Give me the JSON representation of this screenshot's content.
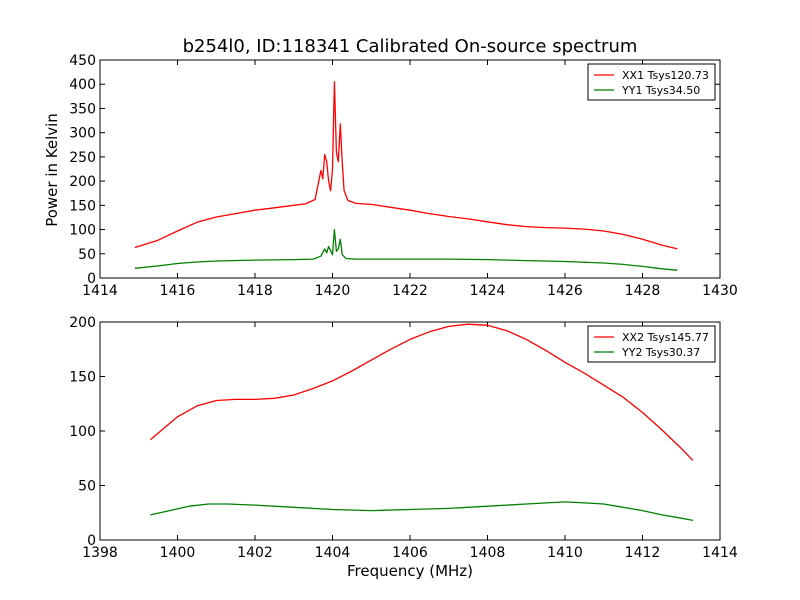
{
  "chart_data": [
    {
      "type": "line",
      "title": "b254l0, ID:118341 Calibrated On-source spectrum",
      "xlabel": "",
      "ylabel": "Power in Kelvin",
      "xlim": [
        1414,
        1430
      ],
      "ylim": [
        0,
        450
      ],
      "xticks": [
        "1414",
        "1416",
        "1418",
        "1420",
        "1422",
        "1424",
        "1426",
        "1428",
        "1430"
      ],
      "yticks": [
        "0",
        "50",
        "100",
        "150",
        "200",
        "250",
        "300",
        "350",
        "400",
        "450"
      ],
      "legend_position": "top-right",
      "series": [
        {
          "name": "XX1 Tsys120.73",
          "color": "#ff0000",
          "x": [
            1414.9,
            1415.5,
            1416.0,
            1416.5,
            1417.0,
            1417.5,
            1418.0,
            1418.5,
            1419.0,
            1419.3,
            1419.55,
            1419.7,
            1419.75,
            1419.8,
            1419.85,
            1419.9,
            1419.95,
            1420.0,
            1420.05,
            1420.1,
            1420.15,
            1420.2,
            1420.25,
            1420.3,
            1420.4,
            1420.6,
            1421.0,
            1421.5,
            1422.0,
            1422.5,
            1423.0,
            1423.5,
            1424.0,
            1424.5,
            1425.0,
            1425.5,
            1426.0,
            1426.5,
            1427.0,
            1427.5,
            1428.0,
            1428.5,
            1428.9
          ],
          "y": [
            63,
            78,
            97,
            115,
            126,
            133,
            140,
            145,
            150,
            153,
            162,
            222,
            205,
            255,
            240,
            200,
            180,
            225,
            405,
            260,
            240,
            318,
            240,
            180,
            160,
            154,
            152,
            146,
            140,
            133,
            127,
            122,
            116,
            110,
            106,
            104,
            103,
            101,
            97,
            90,
            80,
            68,
            60
          ]
        },
        {
          "name": "YY1 Tsys34.50",
          "color": "#008000",
          "x": [
            1414.9,
            1415.5,
            1416.0,
            1416.5,
            1417.0,
            1418.0,
            1419.0,
            1419.5,
            1419.7,
            1419.8,
            1419.85,
            1419.9,
            1420.0,
            1420.05,
            1420.1,
            1420.15,
            1420.2,
            1420.25,
            1420.35,
            1420.6,
            1421.0,
            1422.0,
            1423.0,
            1424.0,
            1425.0,
            1426.0,
            1427.0,
            1427.5,
            1428.0,
            1428.5,
            1428.9
          ],
          "y": [
            20,
            25,
            30,
            33,
            35,
            37,
            38,
            39,
            45,
            60,
            52,
            65,
            48,
            100,
            55,
            60,
            80,
            48,
            40,
            39,
            39,
            39,
            39,
            38,
            36,
            34,
            31,
            28,
            24,
            19,
            16
          ]
        }
      ]
    },
    {
      "type": "line",
      "title": "",
      "xlabel": "Frequency (MHz)",
      "ylabel": "",
      "xlim": [
        1398,
        1414
      ],
      "ylim": [
        0,
        200
      ],
      "xticks": [
        "1398",
        "1400",
        "1402",
        "1404",
        "1406",
        "1408",
        "1410",
        "1412",
        "1414"
      ],
      "yticks": [
        "0",
        "50",
        "100",
        "150",
        "200"
      ],
      "legend_position": "top-right",
      "series": [
        {
          "name": "XX2 Tsys145.77",
          "color": "#ff0000",
          "x": [
            1399.3,
            1399.6,
            1400.0,
            1400.5,
            1401.0,
            1401.5,
            1402.0,
            1402.5,
            1403.0,
            1403.5,
            1404.0,
            1404.5,
            1405.0,
            1405.5,
            1406.0,
            1406.5,
            1407.0,
            1407.5,
            1408.0,
            1408.5,
            1409.0,
            1409.5,
            1410.0,
            1410.5,
            1411.0,
            1411.5,
            1412.0,
            1412.5,
            1413.0,
            1413.3
          ],
          "y": [
            92,
            101,
            113,
            123,
            128,
            129,
            129,
            130,
            133,
            139,
            146,
            155,
            165,
            175,
            184,
            191,
            196,
            198,
            197,
            192,
            184,
            174,
            163,
            153,
            142,
            131,
            117,
            101,
            84,
            73
          ]
        },
        {
          "name": "YY2 Tsys30.37",
          "color": "#008000",
          "x": [
            1399.3,
            1399.8,
            1400.3,
            1400.8,
            1401.3,
            1402.0,
            1403.0,
            1404.0,
            1405.0,
            1406.0,
            1407.0,
            1408.0,
            1409.0,
            1410.0,
            1410.5,
            1411.0,
            1411.5,
            1412.0,
            1412.5,
            1413.0,
            1413.3
          ],
          "y": [
            23,
            27,
            31,
            33,
            33,
            32,
            30,
            28,
            27,
            28,
            29,
            31,
            33,
            35,
            34,
            33,
            30,
            27,
            23,
            20,
            18
          ]
        }
      ]
    }
  ]
}
